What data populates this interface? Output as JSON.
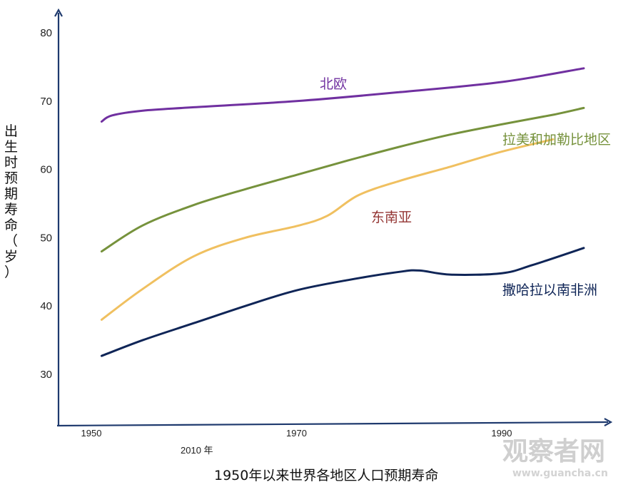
{
  "chart_data": {
    "type": "line",
    "title": "1950年以来世界各地区人口预期寿命",
    "ylabel": "出生时预期寿命（岁）",
    "xlabel": "2010 年",
    "ylim": [
      25,
      83
    ],
    "xlim": [
      1948.5,
      1999.5
    ],
    "yticks": [
      30,
      40,
      50,
      60,
      70,
      80
    ],
    "xticks": [
      1950,
      1970,
      1990
    ],
    "colors": {
      "axis": "#1f3a6e",
      "north_europe": "#7030a0",
      "latin_america": "#76923c",
      "southeast_asia": "#f0c060",
      "sub_saharan": "#0f2557",
      "southeast_asia_label": "#943634"
    },
    "series": [
      {
        "name": "北欧",
        "color": "#7030a0",
        "x": [
          1951,
          1952,
          1955,
          1960,
          1970,
          1980,
          1990,
          1998
        ],
        "values": [
          67,
          67.9,
          68.6,
          69.1,
          70.0,
          71.3,
          72.8,
          74.8
        ]
      },
      {
        "name": "拉美和加勒比地区",
        "color": "#76923c",
        "x": [
          1951,
          1955,
          1960,
          1965,
          1970,
          1975,
          1980,
          1985,
          1990,
          1995,
          1998
        ],
        "values": [
          48,
          51.8,
          54.8,
          57.1,
          59.2,
          61.3,
          63.3,
          65.1,
          66.6,
          68.0,
          69.0
        ]
      },
      {
        "name": "东南亚",
        "color": "#f0c060",
        "x": [
          1951,
          1955,
          1960,
          1965,
          1970,
          1973,
          1976,
          1980,
          1985,
          1990,
          1995
        ],
        "values": [
          38,
          42.5,
          47.3,
          50.0,
          51.7,
          53.2,
          56.2,
          58.3,
          60.4,
          62.6,
          64.4
        ]
      },
      {
        "name": "撒哈拉以南非洲",
        "color": "#0f2557",
        "x": [
          1951,
          1955,
          1960,
          1965,
          1970,
          1975,
          1980,
          1982,
          1985,
          1990,
          1993,
          1998
        ],
        "values": [
          32.7,
          35,
          37.5,
          40,
          42.3,
          43.8,
          45.0,
          45.2,
          44.6,
          44.8,
          46.0,
          48.5
        ]
      }
    ]
  },
  "watermark": {
    "text": "观察者网",
    "url": "www.guancha.cn"
  }
}
